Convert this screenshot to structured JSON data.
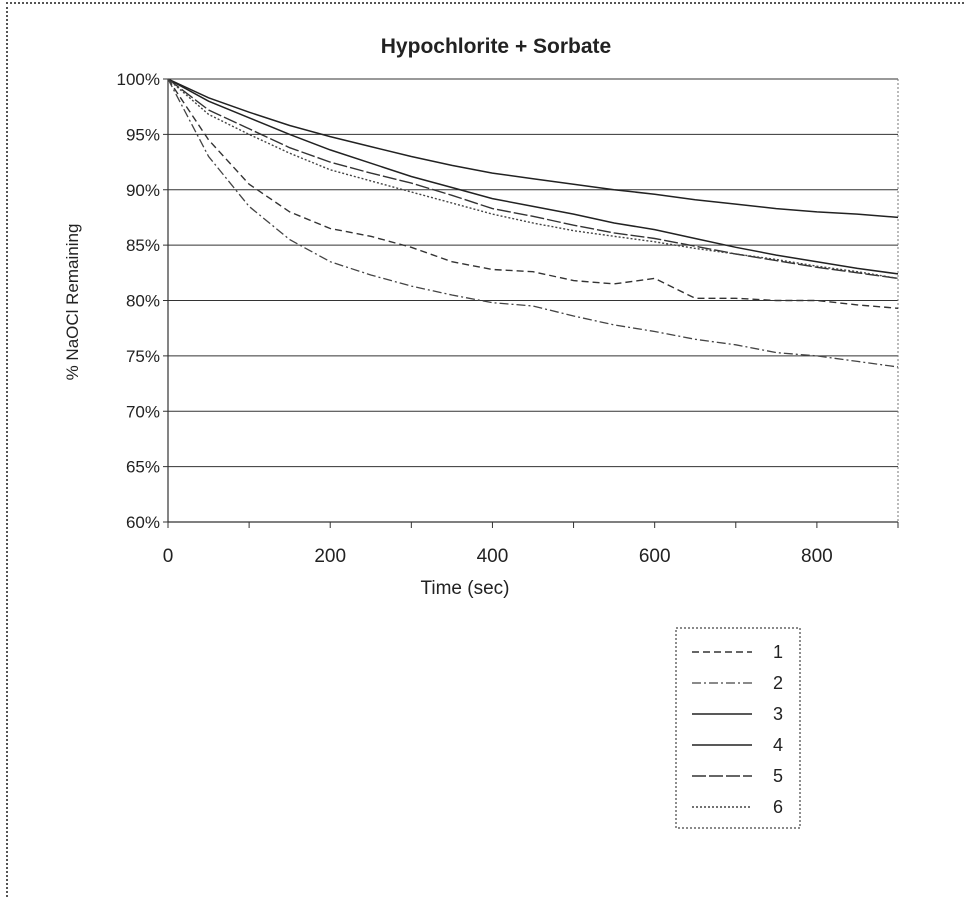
{
  "chart_data": {
    "type": "line",
    "title": "Hypochlorite + Sorbate",
    "xlabel": "Time (sec)",
    "ylabel": "% NaOCl Remaining",
    "xlim": [
      0,
      900
    ],
    "ylim": [
      60,
      100
    ],
    "x_ticks": [
      "0",
      "200",
      "400",
      "600",
      "800"
    ],
    "x_tick_values": [
      0,
      200,
      400,
      600,
      800
    ],
    "y_ticks": [
      "60%",
      "65%",
      "70%",
      "75%",
      "80%",
      "85%",
      "90%",
      "95%",
      "100%"
    ],
    "y_tick_values": [
      60,
      65,
      70,
      75,
      80,
      85,
      90,
      95,
      100
    ],
    "grid": "horizontal",
    "legend_position": "below-right",
    "x": [
      0,
      50,
      100,
      150,
      200,
      250,
      300,
      350,
      400,
      450,
      500,
      550,
      600,
      650,
      700,
      750,
      800,
      850,
      900
    ],
    "series": [
      {
        "name": "1",
        "style": "dashed",
        "values": [
          100,
          94.5,
          90.5,
          88.0,
          86.5,
          85.8,
          84.8,
          83.5,
          82.8,
          82.6,
          81.8,
          81.5,
          82.0,
          80.2,
          80.2,
          80.0,
          80.0,
          79.6,
          79.3
        ]
      },
      {
        "name": "2",
        "style": "dash-dot",
        "values": [
          100,
          93.0,
          88.5,
          85.5,
          83.5,
          82.3,
          81.3,
          80.5,
          79.8,
          79.5,
          78.6,
          77.8,
          77.2,
          76.5,
          76.0,
          75.3,
          75.0,
          74.5,
          74.0
        ]
      },
      {
        "name": "3",
        "style": "solid",
        "values": [
          100,
          98.0,
          96.5,
          95.0,
          93.6,
          92.4,
          91.2,
          90.2,
          89.2,
          88.5,
          87.8,
          87.0,
          86.4,
          85.6,
          84.8,
          84.1,
          83.5,
          82.9,
          82.4
        ]
      },
      {
        "name": "4",
        "style": "solid",
        "values": [
          100,
          98.3,
          97.0,
          95.8,
          94.8,
          93.9,
          93.0,
          92.2,
          91.5,
          91.0,
          90.5,
          90.0,
          89.6,
          89.1,
          88.7,
          88.3,
          88.0,
          87.8,
          87.5
        ]
      },
      {
        "name": "5",
        "style": "long-dash",
        "values": [
          100,
          97.2,
          95.5,
          93.8,
          92.5,
          91.5,
          90.6,
          89.5,
          88.3,
          87.6,
          86.8,
          86.1,
          85.6,
          84.9,
          84.2,
          83.6,
          83.0,
          82.5,
          82.0
        ]
      },
      {
        "name": "6",
        "style": "dotted",
        "values": [
          100,
          96.8,
          95.0,
          93.3,
          91.8,
          90.8,
          89.8,
          88.8,
          87.8,
          87.0,
          86.3,
          85.8,
          85.3,
          84.7,
          84.2,
          83.7,
          83.1,
          82.6,
          82.0
        ]
      }
    ]
  }
}
